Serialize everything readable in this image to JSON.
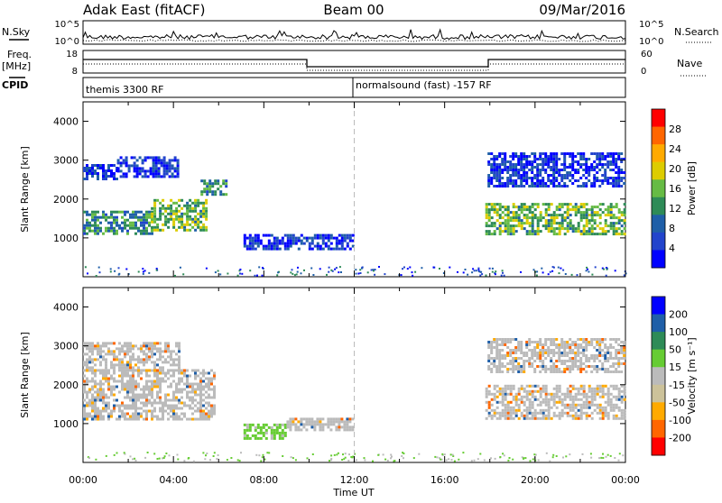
{
  "header": {
    "station": "Adak East (fitACF)",
    "beam": "Beam 00",
    "date": "09/Mar/2016"
  },
  "strip_labels": {
    "nsky": "N.Sky",
    "nsearch": "N.Search",
    "freq": "Freq.",
    "freq_unit": "[MHz]",
    "nave": "Nave",
    "cpid": "CPID",
    "nsky_ticks": [
      "10^5",
      "10^0"
    ],
    "nsearch_ticks": [
      "10^5",
      "10^0"
    ],
    "freq_ticks": [
      "18",
      "8"
    ],
    "nave_ticks": [
      "60",
      "0"
    ]
  },
  "cpid": {
    "left_label": "themis 3300 RF",
    "right_label": "normalsound (fast) -157 RF"
  },
  "colors": {
    "power_scale": [
      "#0000ff",
      "#2244cc",
      "#1f5fa8",
      "#2e8b57",
      "#66bb44",
      "#ddcc00",
      "#ffaa00",
      "#ff6600",
      "#ff0000"
    ],
    "velocity_scale": [
      "#ff0000",
      "#ff6600",
      "#ffaa00",
      "#ccc29a",
      "#bbbbbb",
      "#66cc33",
      "#2e8b57",
      "#1f5fa8",
      "#0000ff"
    ],
    "ground_scatter": "#bbbbbb"
  },
  "chart_data": [
    {
      "type": "heatmap",
      "panel": "power",
      "ylabel": "Slant Range [km]",
      "xlabel": "",
      "ylim": [
        0,
        4500
      ],
      "yticks": [
        "1000",
        "2000",
        "3000",
        "4000"
      ],
      "xticks": [
        "00:00",
        "04:00",
        "08:00",
        "12:00",
        "16:00",
        "20:00",
        "00:00"
      ],
      "colorbar_label": "Power [dB]",
      "colorbar_ticks": [
        "4",
        "8",
        "12",
        "16",
        "20",
        "24",
        "28"
      ],
      "regions": [
        {
          "t0": 0.0,
          "t1": 1.5,
          "r0": 2500,
          "r1": 2900,
          "level": "low"
        },
        {
          "t0": 1.5,
          "t1": 4.2,
          "r0": 2600,
          "r1": 3100,
          "level": "low"
        },
        {
          "t0": 0.0,
          "t1": 3.0,
          "r0": 1100,
          "r1": 1700,
          "level": "mid"
        },
        {
          "t0": 3.0,
          "t1": 5.5,
          "r0": 1200,
          "r1": 2000,
          "level": "high"
        },
        {
          "t0": 5.2,
          "t1": 6.3,
          "r0": 2100,
          "r1": 2500,
          "level": "mid"
        },
        {
          "t0": 7.1,
          "t1": 11.9,
          "r0": 700,
          "r1": 1100,
          "level": "low"
        },
        {
          "t0": 17.9,
          "t1": 24.0,
          "r0": 2300,
          "r1": 3200,
          "level": "low"
        },
        {
          "t0": 17.8,
          "t1": 24.0,
          "r0": 1100,
          "r1": 1900,
          "level": "high"
        }
      ]
    },
    {
      "type": "heatmap",
      "panel": "velocity",
      "ylabel": "Slant Range [km]",
      "xlabel": "Time UT",
      "ylim": [
        0,
        4500
      ],
      "yticks": [
        "1000",
        "2000",
        "3000",
        "4000"
      ],
      "xticks": [
        "00:00",
        "04:00",
        "08:00",
        "12:00",
        "16:00",
        "20:00",
        "00:00"
      ],
      "colorbar_label": "Velocity [m s⁻¹]",
      "colorbar_ticks": [
        "200",
        "100",
        "50",
        "15",
        "-15",
        "-50",
        "-100",
        "-200"
      ],
      "regions": [
        {
          "t0": 0.0,
          "t1": 4.2,
          "r0": 2400,
          "r1": 3100,
          "class": "ground"
        },
        {
          "t0": 0.0,
          "t1": 5.8,
          "r0": 1100,
          "r1": 2400,
          "class": "ground"
        },
        {
          "t0": 7.1,
          "t1": 9.0,
          "r0": 650,
          "r1": 1000,
          "class": "positive"
        },
        {
          "t0": 9.0,
          "t1": 11.9,
          "r0": 850,
          "r1": 1150,
          "class": "ground"
        },
        {
          "t0": 17.9,
          "t1": 24.0,
          "r0": 2300,
          "r1": 3200,
          "class": "ground"
        },
        {
          "t0": 17.8,
          "t1": 24.0,
          "r0": 1100,
          "r1": 2000,
          "class": "ground"
        }
      ]
    }
  ]
}
